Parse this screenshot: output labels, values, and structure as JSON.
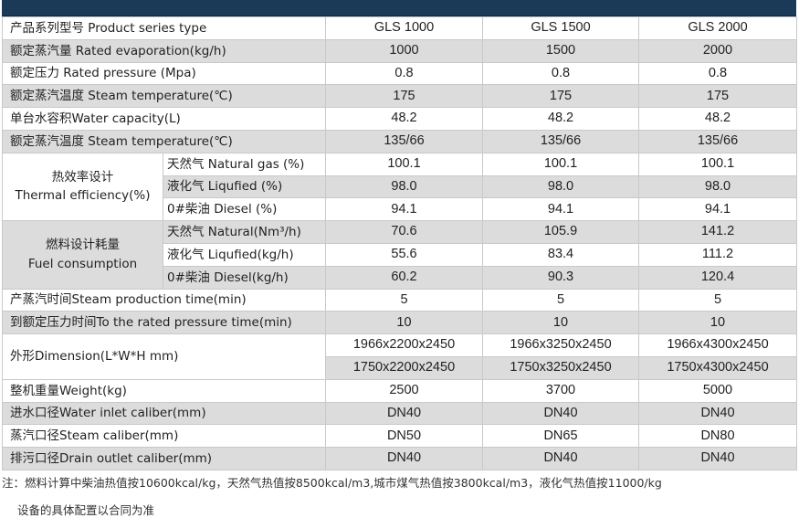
{
  "table": {
    "header": {
      "label": "产品系列型号 Product series type",
      "models": [
        "GLS 1000",
        "GLS 1500",
        "GLS 2000"
      ]
    },
    "rows": [
      {
        "label": "额定蒸汽量 Rated evaporation(kg/h)",
        "values": [
          "1000",
          "1500",
          "2000"
        ]
      },
      {
        "label": "额定压力 Rated pressure (Mpa)",
        "values": [
          "0.8",
          "0.8",
          "0.8"
        ]
      },
      {
        "label": "额定蒸汽温度 Steam temperature(℃)",
        "values": [
          "175",
          "175",
          "175"
        ]
      },
      {
        "label": "单台水容积Water capacity(L)",
        "values": [
          "48.2",
          "48.2",
          "48.2"
        ]
      },
      {
        "label": "额定蒸汽温度 Steam temperature(℃)",
        "values": [
          "135/66",
          "135/66",
          "135/66"
        ]
      }
    ],
    "thermal": {
      "title_cn": "热效率设计",
      "title_en": "Thermal efficiency(%)",
      "items": [
        {
          "label": "天然气 Natural gas (%)",
          "values": [
            "100.1",
            "100.1",
            "100.1"
          ]
        },
        {
          "label": "液化气 Liqufied (%)",
          "values": [
            "98.0",
            "98.0",
            "98.0"
          ]
        },
        {
          "label": "0#柴油 Diesel (%)",
          "values": [
            "94.1",
            "94.1",
            "94.1"
          ]
        }
      ]
    },
    "fuel": {
      "title_cn": "燃料设计耗量",
      "title_en": "Fuel consumption",
      "items": [
        {
          "label": "天然气 Natural(Nm³/h)",
          "values": [
            "70.6",
            "105.9",
            "141.2"
          ]
        },
        {
          "label": "液化气 Liqufied(kg/h)",
          "values": [
            "55.6",
            "83.4",
            "111.2"
          ]
        },
        {
          "label": "0#柴油 Diesel(kg/h)",
          "values": [
            "60.2",
            "90.3",
            "120.4"
          ]
        }
      ]
    },
    "rows2": [
      {
        "label": "产蒸汽时间Steam production time(min)",
        "values": [
          "5",
          "5",
          "5"
        ]
      },
      {
        "label": "到额定压力时间To the rated pressure time(min)",
        "values": [
          "10",
          "10",
          "10"
        ]
      }
    ],
    "dimension": {
      "label": "外形Dimension(L*W*H mm)",
      "line1": [
        "1966x2200x2450",
        "1966x3250x2450",
        "1966x4300x2450"
      ],
      "line2": [
        "1750x2200x2450",
        "1750x3250x2450",
        "1750x4300x2450"
      ]
    },
    "rows3": [
      {
        "label": "整机重量Weight(kg)",
        "values": [
          "2500",
          "3700",
          "5000"
        ]
      },
      {
        "label": "进水口径Water inlet caliber(mm)",
        "values": [
          "DN40",
          "DN40",
          "DN40"
        ]
      },
      {
        "label": "蒸汽口径Steam caliber(mm)",
        "values": [
          "DN50",
          "DN65",
          "DN80"
        ]
      },
      {
        "label": "排污口径Drain outlet caliber(mm)",
        "values": [
          "DN40",
          "DN40",
          "DN40"
        ]
      }
    ]
  },
  "notes": {
    "line1": "注：燃料计算中柴油热值按10600kcal/kg，天然气热值按8500kcal/m3,城市煤气热值按3800kcal/m3，液化气热值按11000/kg",
    "line2": "设备的具体配置以合同为准"
  }
}
